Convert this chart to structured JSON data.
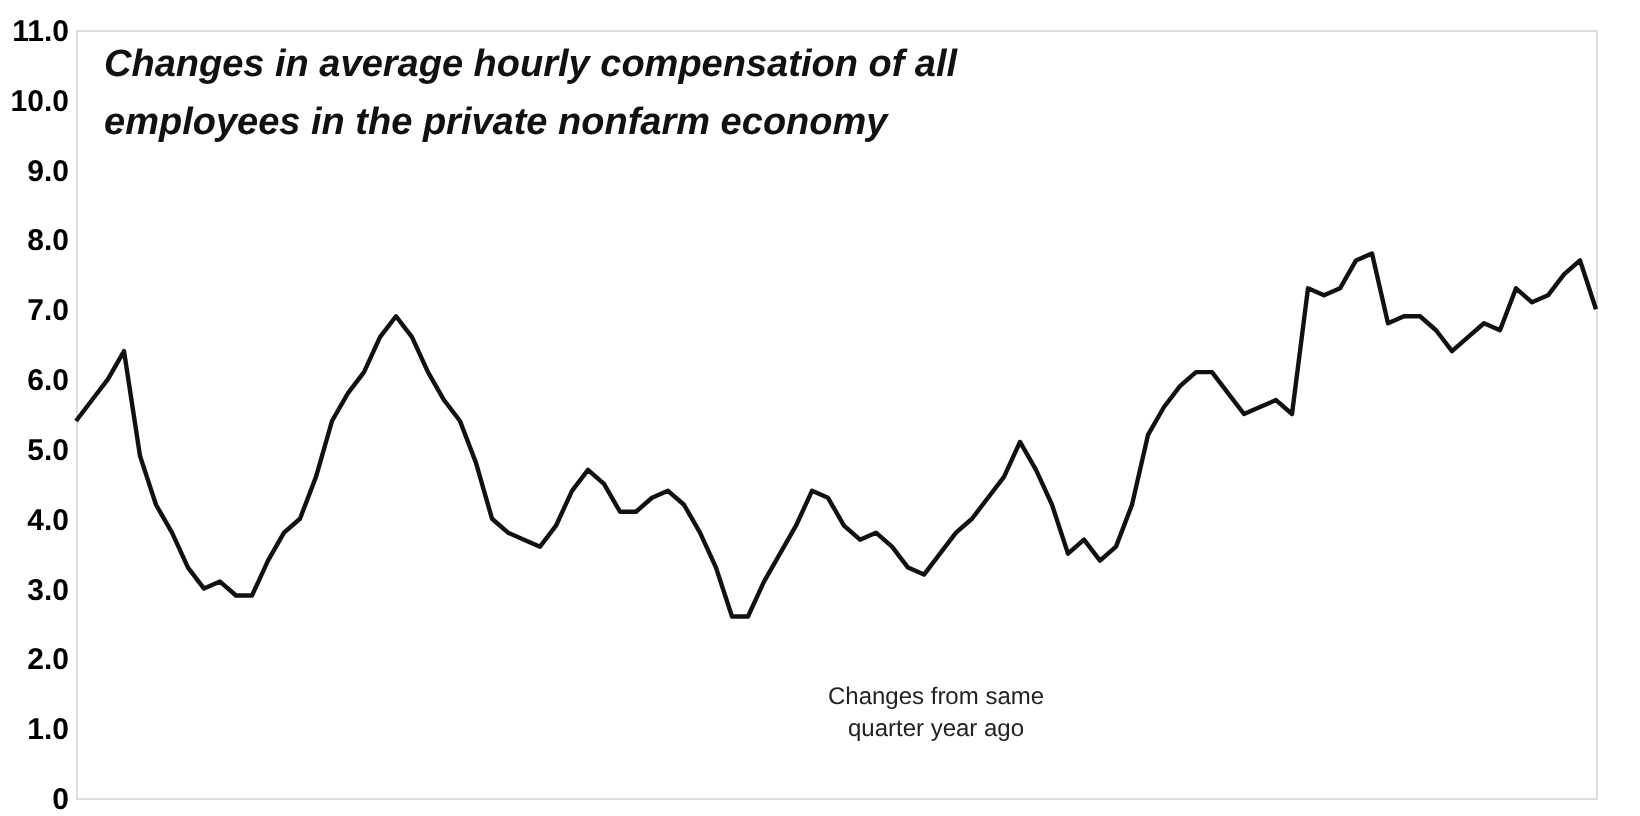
{
  "chart_data": {
    "type": "line",
    "title": "Changes in average hourly compensation of all employees in the private nonfarm economy",
    "annotations": [
      "Changes from same quarter year ago"
    ],
    "categories": [
      null,
      null,
      null,
      null,
      null,
      null,
      null,
      null,
      null,
      null,
      null,
      null,
      null,
      null,
      null,
      null,
      null,
      null,
      null,
      null,
      null,
      null,
      null,
      null,
      null,
      null,
      null,
      null,
      null,
      null,
      null,
      null,
      null,
      null,
      null,
      null,
      null,
      null,
      null,
      null,
      null,
      null,
      null,
      null,
      null,
      null,
      null,
      null,
      null,
      null,
      null,
      null,
      null,
      null,
      null,
      null,
      null,
      null,
      null,
      null,
      null,
      null,
      null,
      null,
      null,
      null,
      null,
      null,
      null,
      null,
      null,
      null,
      null,
      null,
      null,
      null,
      null,
      null,
      null,
      null,
      null,
      null,
      null,
      null,
      null,
      null,
      null,
      null,
      null,
      null,
      null,
      null,
      null,
      null,
      null,
      null
    ],
    "series": [
      {
        "color": "#111111",
        "values": [
          5.4,
          5.7,
          6.0,
          6.4,
          4.9,
          4.2,
          3.8,
          3.3,
          3.0,
          3.1,
          2.9,
          2.9,
          3.4,
          3.8,
          4.0,
          4.6,
          5.4,
          5.8,
          6.1,
          6.6,
          6.9,
          6.6,
          6.1,
          5.7,
          5.4,
          4.8,
          4.0,
          3.8,
          3.7,
          3.6,
          3.9,
          4.4,
          4.7,
          4.5,
          4.1,
          4.1,
          4.3,
          4.4,
          4.2,
          3.8,
          3.3,
          2.6,
          2.6,
          3.1,
          3.5,
          3.9,
          4.4,
          4.3,
          3.9,
          3.7,
          3.8,
          3.6,
          3.3,
          3.2,
          3.5,
          3.8,
          4.0,
          4.3,
          4.6,
          5.1,
          4.7,
          4.2,
          3.5,
          3.7,
          3.4,
          3.6,
          4.2,
          5.2,
          5.6,
          5.9,
          6.1,
          6.1,
          5.8,
          5.5,
          5.6,
          5.7,
          5.5,
          7.3,
          7.2,
          7.3,
          7.7,
          7.8,
          6.8,
          6.9,
          6.9,
          6.7,
          6.4,
          6.6,
          6.8,
          6.7,
          7.3,
          7.1,
          7.2,
          7.5,
          7.7,
          7.0
        ]
      }
    ],
    "ylim": [
      0,
      11
    ],
    "yticks": [
      0,
      {
        "value": 1,
        "label": "1.0"
      },
      {
        "value": 2,
        "label": "2.0"
      },
      {
        "value": 3,
        "label": "3.0"
      },
      {
        "value": 4,
        "label": "4.0"
      },
      {
        "value": 5,
        "label": "5.0"
      },
      {
        "value": 6,
        "label": "6.0"
      },
      {
        "value": 7,
        "label": "7.0"
      },
      {
        "value": 8,
        "label": "8.0"
      },
      {
        "value": 9,
        "label": "9.0"
      },
      {
        "value": 10,
        "label": "10.0"
      },
      {
        "value": 11,
        "label": "11.0"
      }
    ],
    "tick_labels": "y",
    "grid": false,
    "legend": false,
    "marker": "none",
    "line_style": "solid"
  }
}
